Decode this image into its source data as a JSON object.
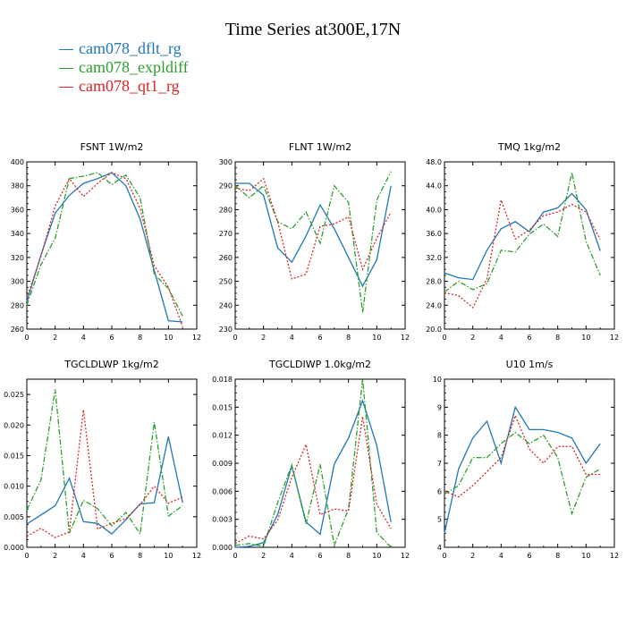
{
  "title": "Time Series at300E,17N",
  "colors": {
    "series_1": "#1f77b4",
    "series_2": "#2ca02c",
    "series_3": "#d62728"
  },
  "legend": [
    {
      "label": "cam078_dflt_rg",
      "color": "#1f77b4"
    },
    {
      "label": "cam078_expldiff",
      "color": "#2ca02c"
    },
    {
      "label": "cam078_qt1_rg",
      "color": "#d62728"
    }
  ],
  "chart_data": [
    {
      "type": "line",
      "title": "FSNT   1W/m2",
      "x": [
        0,
        1,
        2,
        3,
        4,
        5,
        6,
        7,
        8,
        9,
        10,
        11
      ],
      "xlim": [
        0,
        12
      ],
      "xticks": [
        "0",
        "2",
        "4",
        "6",
        "8",
        "10",
        "12"
      ],
      "ylim": [
        260,
        400
      ],
      "yticks": [
        "260",
        "280",
        "300",
        "320",
        "340",
        "360",
        "380",
        "400"
      ],
      "series": [
        {
          "name": "cam078_dflt_rg",
          "values": [
            283,
            322,
            357,
            372,
            382,
            386,
            391,
            380,
            352,
            309,
            267,
            266
          ]
        },
        {
          "name": "cam078_expldiff",
          "values": [
            280,
            314,
            336,
            386,
            388,
            391,
            381,
            389,
            370,
            306,
            294,
            271
          ]
        },
        {
          "name": "cam078_qt1_rg",
          "values": [
            286,
            321,
            363,
            386,
            371,
            382,
            391,
            386,
            361,
            313,
            295,
            262
          ]
        }
      ]
    },
    {
      "type": "line",
      "title": "FLNT   1W/m2",
      "x": [
        0,
        1,
        2,
        3,
        4,
        5,
        6,
        7,
        8,
        9,
        10,
        11
      ],
      "xlim": [
        0,
        12
      ],
      "xticks": [
        "0",
        "2",
        "4",
        "6",
        "8",
        "10",
        "12"
      ],
      "ylim": [
        230,
        300
      ],
      "yticks": [
        "230",
        "240",
        "250",
        "260",
        "270",
        "280",
        "290",
        "300"
      ],
      "series": [
        {
          "name": "cam078_dflt_rg",
          "values": [
            291,
            291,
            286,
            264,
            258,
            269,
            282,
            272,
            260,
            248,
            259,
            290
          ]
        },
        {
          "name": "cam078_expldiff",
          "values": [
            290,
            285,
            290,
            275,
            272,
            279,
            266,
            290,
            283,
            237,
            284,
            296
          ]
        },
        {
          "name": "cam078_qt1_rg",
          "values": [
            289,
            288,
            293,
            275,
            251,
            253,
            273,
            274,
            277,
            255,
            268,
            279
          ]
        }
      ]
    },
    {
      "type": "line",
      "title": "TMQ   1kg/m2",
      "x": [
        0,
        1,
        2,
        3,
        4,
        5,
        6,
        7,
        8,
        9,
        10,
        11
      ],
      "xlim": [
        0,
        12
      ],
      "xticks": [
        "0",
        "2",
        "4",
        "6",
        "8",
        "10",
        "12"
      ],
      "ylim": [
        20,
        48
      ],
      "yticks": [
        "20.0",
        "24.0",
        "28.0",
        "32.0",
        "36.0",
        "40.0",
        "44.0",
        "48.0"
      ],
      "series": [
        {
          "name": "cam078_dflt_rg",
          "values": [
            29.4,
            28.6,
            28.3,
            33.2,
            36.8,
            38.0,
            36.3,
            39.6,
            40.3,
            42.7,
            40.0,
            33.1
          ]
        },
        {
          "name": "cam078_expldiff",
          "values": [
            26.2,
            28.0,
            26.6,
            27.6,
            33.2,
            32.9,
            35.9,
            37.6,
            35.5,
            46.2,
            34.7,
            29.0
          ]
        },
        {
          "name": "cam078_qt1_rg",
          "values": [
            26.1,
            25.6,
            23.6,
            28.4,
            41.6,
            35.1,
            36.6,
            39.0,
            39.6,
            40.9,
            39.6,
            35.0
          ]
        }
      ]
    },
    {
      "type": "line",
      "title": "TGCLDLWP   1kg/m2",
      "x": [
        0,
        1,
        2,
        3,
        4,
        5,
        6,
        7,
        8,
        9,
        10,
        11
      ],
      "xlim": [
        0,
        12
      ],
      "xticks": [
        "0",
        "2",
        "4",
        "6",
        "8",
        "10",
        "12"
      ],
      "ylim": [
        0,
        0.0275
      ],
      "yticks": [
        "0.000",
        "0.005",
        "0.010",
        "0.015",
        "0.020",
        "0.025"
      ],
      "series": [
        {
          "name": "cam078_dflt_rg",
          "values": [
            0.0038,
            0.0053,
            0.0068,
            0.0113,
            0.0042,
            0.0039,
            0.0022,
            0.0045,
            0.0071,
            0.0073,
            0.0181,
            0.0073
          ]
        },
        {
          "name": "cam078_expldiff",
          "values": [
            0.0061,
            0.011,
            0.0258,
            0.0023,
            0.0077,
            0.0063,
            0.0035,
            0.0057,
            0.0022,
            0.0205,
            0.0051,
            0.0068
          ]
        },
        {
          "name": "cam078_qt1_rg",
          "values": [
            0.0018,
            0.0031,
            0.0016,
            0.0025,
            0.0225,
            0.003,
            0.0039,
            0.0047,
            0.007,
            0.01,
            0.0072,
            0.0082
          ]
        }
      ]
    },
    {
      "type": "line",
      "title": "TGCLDIWP   1.0kg/m2",
      "x": [
        0,
        1,
        2,
        3,
        4,
        5,
        6,
        7,
        8,
        9,
        10,
        11
      ],
      "xlim": [
        0,
        12
      ],
      "xticks": [
        "0",
        "2",
        "4",
        "6",
        "8",
        "10",
        "12"
      ],
      "ylim": [
        0,
        0.018
      ],
      "yticks": [
        "0.000",
        "0.003",
        "0.006",
        "0.009",
        "0.012",
        "0.015",
        "0.018"
      ],
      "series": [
        {
          "name": "cam078_dflt_rg",
          "values": [
            0.0,
            0.0001,
            0.0005,
            0.0035,
            0.0087,
            0.0027,
            0.0014,
            0.0089,
            0.0117,
            0.0157,
            0.0109,
            0.0027
          ]
        },
        {
          "name": "cam078_expldiff",
          "values": [
            0.0002,
            0.0004,
            0.0001,
            0.0048,
            0.0088,
            0.0025,
            0.0089,
            0.0002,
            0.0041,
            0.018,
            0.0016,
            0.0
          ]
        },
        {
          "name": "cam078_qt1_rg",
          "values": [
            0.0004,
            0.0012,
            0.0009,
            0.0029,
            0.0075,
            0.011,
            0.0035,
            0.0041,
            0.0039,
            0.014,
            0.0046,
            0.002
          ]
        }
      ]
    },
    {
      "type": "line",
      "title": "U10   1m/s",
      "x": [
        0,
        1,
        2,
        3,
        4,
        5,
        6,
        7,
        8,
        9,
        10,
        11
      ],
      "xlim": [
        0,
        12
      ],
      "xticks": [
        "0",
        "2",
        "4",
        "6",
        "8",
        "10",
        "12"
      ],
      "ylim": [
        4,
        10
      ],
      "yticks": [
        "4",
        "5",
        "6",
        "7",
        "8",
        "9",
        "10"
      ],
      "series": [
        {
          "name": "cam078_dflt_rg",
          "values": [
            4.5,
            6.8,
            7.9,
            8.5,
            7.0,
            9.0,
            8.2,
            8.2,
            8.1,
            7.9,
            7.0,
            7.7
          ]
        },
        {
          "name": "cam078_expldiff",
          "values": [
            5.9,
            6.2,
            7.2,
            7.2,
            7.7,
            8.1,
            7.7,
            8.0,
            7.2,
            5.2,
            6.5,
            6.8
          ]
        },
        {
          "name": "cam078_qt1_rg",
          "values": [
            6.0,
            5.8,
            6.2,
            6.7,
            7.2,
            8.7,
            7.5,
            7.0,
            7.6,
            7.6,
            6.6,
            6.6
          ]
        }
      ]
    }
  ]
}
